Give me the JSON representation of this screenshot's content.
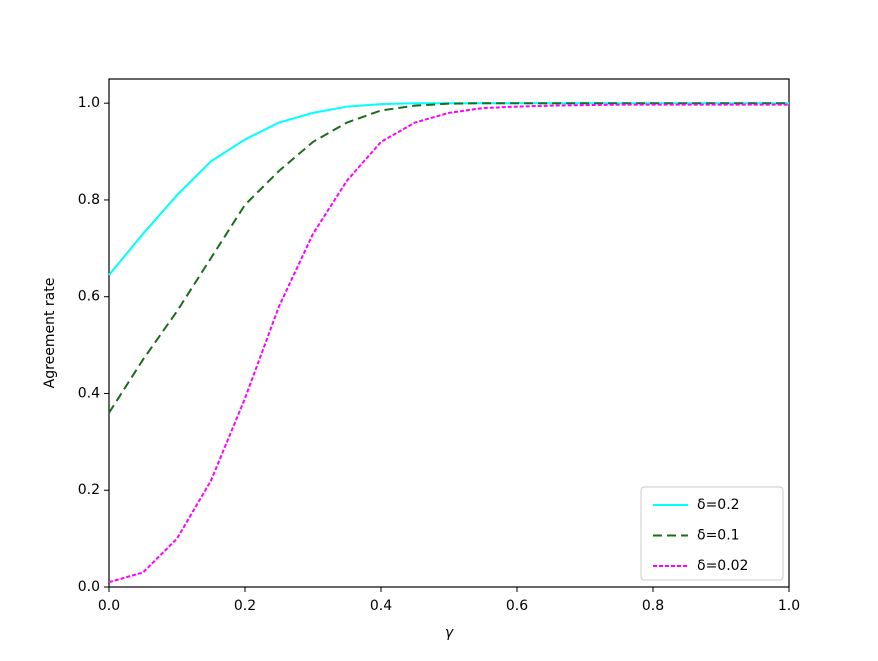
{
  "chart_data": {
    "type": "line",
    "x_label": "γ",
    "y_label": "Agreement rate",
    "x": [
      0,
      0.05,
      0.1,
      0.15,
      0.2,
      0.25,
      0.3,
      0.35,
      0.4,
      0.45,
      0.5,
      0.55,
      0.6,
      0.65,
      0.7,
      0.75,
      0.8,
      0.85,
      0.9,
      0.95,
      1.0
    ],
    "series": [
      {
        "name": "δ=0.2",
        "color": "#00ffff",
        "dash": "none",
        "values": [
          0.645,
          0.73,
          0.81,
          0.88,
          0.925,
          0.96,
          0.98,
          0.993,
          0.998,
          1.0,
          1.0,
          1.0,
          1.0,
          1.0,
          1.0,
          1.0,
          1.0,
          1.0,
          1.0,
          1.0,
          1.0
        ]
      },
      {
        "name": "δ=0.1",
        "color": "#1a6e1a",
        "dash": "9,5",
        "values": [
          0.36,
          0.47,
          0.57,
          0.68,
          0.79,
          0.86,
          0.92,
          0.96,
          0.985,
          0.995,
          0.999,
          1.0,
          1.0,
          1.0,
          1.0,
          1.0,
          1.0,
          1.0,
          1.0,
          1.0,
          1.0
        ]
      },
      {
        "name": "δ=0.02",
        "color": "#ff00ff",
        "dash": "4,2",
        "values": [
          0.01,
          0.03,
          0.1,
          0.22,
          0.39,
          0.58,
          0.73,
          0.84,
          0.92,
          0.96,
          0.98,
          0.99,
          0.993,
          0.995,
          0.996,
          0.997,
          0.997,
          0.997,
          0.997,
          0.997,
          0.997
        ]
      }
    ],
    "xlim": [
      0,
      1.0
    ],
    "ylim": [
      0,
      1.05
    ],
    "xticks": [
      {
        "value": 0,
        "label": "0.0"
      },
      0.2,
      0.4,
      0.6,
      0.8,
      {
        "value": 1,
        "label": "1.0"
      }
    ],
    "yticks": [
      {
        "value": 0,
        "label": "0.0"
      },
      0.2,
      0.4,
      0.6,
      0.8,
      {
        "value": 1,
        "label": "1.0"
      }
    ],
    "legend": "lower right"
  }
}
